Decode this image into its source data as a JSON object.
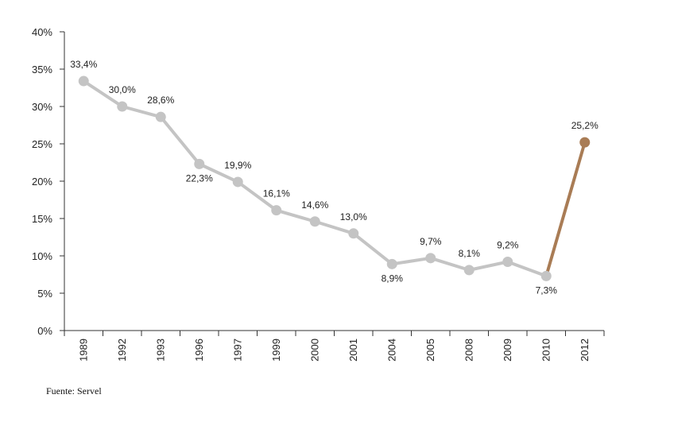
{
  "chart_data": {
    "type": "line",
    "title": "",
    "xlabel": "",
    "ylabel": "",
    "categories": [
      "1989",
      "1992",
      "1993",
      "1996",
      "1997",
      "1999",
      "2000",
      "2001",
      "2004",
      "2005",
      "2008",
      "2009",
      "2010",
      "2012"
    ],
    "values": [
      33.4,
      30.0,
      28.6,
      22.3,
      19.9,
      16.1,
      14.6,
      13.0,
      8.9,
      9.7,
      8.1,
      9.2,
      7.3,
      25.2
    ],
    "data_labels": [
      "33,4%",
      "30,0%",
      "28,6%",
      "22,3%",
      "19,9%",
      "16,1%",
      "14,6%",
      "13,0%",
      "8,9%",
      "9,7%",
      "8,1%",
      "9,2%",
      "7,3%",
      "25,2%"
    ],
    "label_position": [
      "above",
      "above",
      "above",
      "below",
      "above",
      "above",
      "above",
      "above",
      "below",
      "above",
      "above",
      "above",
      "below",
      "above"
    ],
    "ylim": [
      0,
      40
    ],
    "yticks": [
      0,
      5,
      10,
      15,
      20,
      25,
      30,
      35,
      40
    ],
    "ytick_labels": [
      "0%",
      "5%",
      "10%",
      "15%",
      "20%",
      "25%",
      "30%",
      "35%",
      "40%"
    ],
    "grid": false,
    "colors": {
      "main": "#c4c4c4",
      "highlight": "#a97c55",
      "axis": "#333333"
    },
    "highlight_from_index": 12
  },
  "source": "Fuente: Servel"
}
